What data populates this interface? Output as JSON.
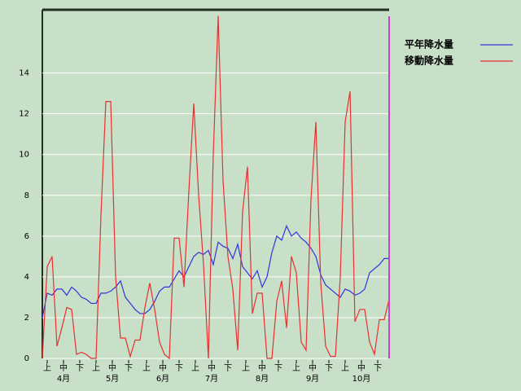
{
  "chart_data": {
    "type": "line",
    "x": [
      0,
      3,
      6,
      9,
      12,
      15,
      18,
      21,
      24,
      27,
      30,
      33,
      36,
      39,
      42,
      45,
      48,
      51,
      54,
      57,
      60,
      63,
      66,
      69,
      72,
      75,
      78,
      81,
      84,
      87,
      90,
      93,
      96,
      99,
      102,
      105,
      108,
      111,
      114,
      117,
      120,
      123,
      126,
      129,
      132,
      135,
      138,
      141,
      144,
      147,
      150,
      153,
      156,
      159,
      162,
      165,
      168,
      171,
      174,
      177,
      180,
      183,
      186,
      189,
      192,
      195,
      198,
      201,
      204,
      207,
      210,
      213
    ],
    "series": [
      {
        "name": "平年降水量",
        "color": "#3333dd",
        "values": [
          2.0,
          3.2,
          3.1,
          3.4,
          3.4,
          3.1,
          3.5,
          3.3,
          3.0,
          2.9,
          2.7,
          2.7,
          3.2,
          3.2,
          3.3,
          3.5,
          3.8,
          3.0,
          2.7,
          2.4,
          2.2,
          2.2,
          2.4,
          2.8,
          3.3,
          3.5,
          3.5,
          3.9,
          4.3,
          4.0,
          4.5,
          5.0,
          5.2,
          5.1,
          5.3,
          4.6,
          5.7,
          5.5,
          5.4,
          4.9,
          5.6,
          4.5,
          4.2,
          3.9,
          4.3,
          3.5,
          4.0,
          5.2,
          6.0,
          5.8,
          6.5,
          6.0,
          6.2,
          5.9,
          5.7,
          5.4,
          5.0,
          4.1,
          3.6,
          3.4,
          3.2,
          3.0,
          3.4,
          3.3,
          3.1,
          3.2,
          3.4,
          4.2,
          4.4,
          4.6,
          4.9,
          4.9
        ]
      },
      {
        "name": "移動降水量",
        "color": "#e83030",
        "values": [
          0,
          4.5,
          5.0,
          0.6,
          1.5,
          2.5,
          2.4,
          0.2,
          0.3,
          0.2,
          0,
          0,
          7.0,
          12.6,
          12.6,
          4.0,
          1.0,
          1.0,
          0.1,
          0.9,
          0.9,
          2.5,
          3.7,
          2.4,
          0.8,
          0.2,
          0,
          5.9,
          5.9,
          3.5,
          8.2,
          12.5,
          8.0,
          4.6,
          0,
          10.0,
          16.8,
          8.7,
          5.0,
          3.4,
          0.4,
          7.2,
          9.4,
          2.2,
          3.2,
          3.2,
          0,
          0,
          2.8,
          3.8,
          1.5,
          5.0,
          4.2,
          0.8,
          0.4,
          7.8,
          11.6,
          3.7,
          0.6,
          0.1,
          0.1,
          4.0,
          11.6,
          13.1,
          1.8,
          2.4,
          2.4,
          0.8,
          0.2,
          1.9,
          1.9,
          2.9
        ]
      }
    ],
    "xlim": [
      0,
      213
    ],
    "xticks": [
      {
        "value": 3,
        "label": "上"
      },
      {
        "value": 13,
        "label": "中"
      },
      {
        "value": 23,
        "label": "下"
      },
      {
        "value": 33,
        "label": "上"
      },
      {
        "value": 43,
        "label": "中"
      },
      {
        "value": 53,
        "label": "下"
      },
      {
        "value": 64,
        "label": "上"
      },
      {
        "value": 74,
        "label": "中"
      },
      {
        "value": 84,
        "label": "下"
      },
      {
        "value": 94,
        "label": "上"
      },
      {
        "value": 104,
        "label": "中"
      },
      {
        "value": 114,
        "label": "下"
      },
      {
        "value": 125,
        "label": "上"
      },
      {
        "value": 135,
        "label": "中"
      },
      {
        "value": 145,
        "label": "下"
      },
      {
        "value": 156,
        "label": "上"
      },
      {
        "value": 166,
        "label": "中"
      },
      {
        "value": 176,
        "label": "下"
      },
      {
        "value": 186,
        "label": "上"
      },
      {
        "value": 196,
        "label": "中"
      },
      {
        "value": 206,
        "label": "下"
      }
    ],
    "month_ticks": [
      {
        "value": 13,
        "label": "4月"
      },
      {
        "value": 43,
        "label": "5月"
      },
      {
        "value": 74,
        "label": "6月"
      },
      {
        "value": 104,
        "label": "7月"
      },
      {
        "value": 135,
        "label": "8月"
      },
      {
        "value": 166,
        "label": "9月"
      },
      {
        "value": 196,
        "label": "10月"
      }
    ],
    "ylim": [
      0,
      17.1
    ],
    "yticks": [
      0,
      2,
      4,
      6,
      8,
      10,
      12,
      14
    ],
    "grid": true
  }
}
